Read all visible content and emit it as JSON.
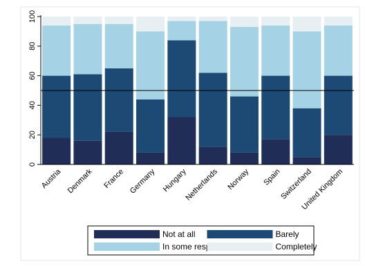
{
  "chart_data": {
    "type": "bar",
    "stacked": true,
    "categories": [
      "Austria",
      "Denmark",
      "France",
      "Germany",
      "Hungary",
      "Netherlands",
      "Norway",
      "Spain",
      "Switzerland",
      "United Kingdom"
    ],
    "series": [
      {
        "name": "Not at all",
        "color": "#1f2d57",
        "values": [
          18,
          16,
          22,
          8,
          32,
          12,
          8,
          17,
          5,
          20
        ]
      },
      {
        "name": "Barely",
        "color": "#1c4a74",
        "values": [
          42,
          45,
          43,
          36,
          52,
          50,
          38,
          43,
          33,
          40
        ]
      },
      {
        "name": "In some respects",
        "color": "#a5d3e5",
        "values": [
          34,
          34,
          30,
          46,
          13,
          35,
          47,
          34,
          52,
          34
        ]
      },
      {
        "name": "Completely",
        "color": "#e8eff3",
        "values": [
          6,
          5,
          5,
          10,
          3,
          3,
          7,
          6,
          10,
          6
        ]
      }
    ],
    "xlabel": "",
    "ylabel": "",
    "ylim": [
      0,
      100
    ],
    "yticks": [
      0,
      20,
      40,
      60,
      80,
      100
    ],
    "reference_line": 50,
    "grid": false,
    "legend": {
      "placement": "bottom",
      "columns": 2
    }
  }
}
